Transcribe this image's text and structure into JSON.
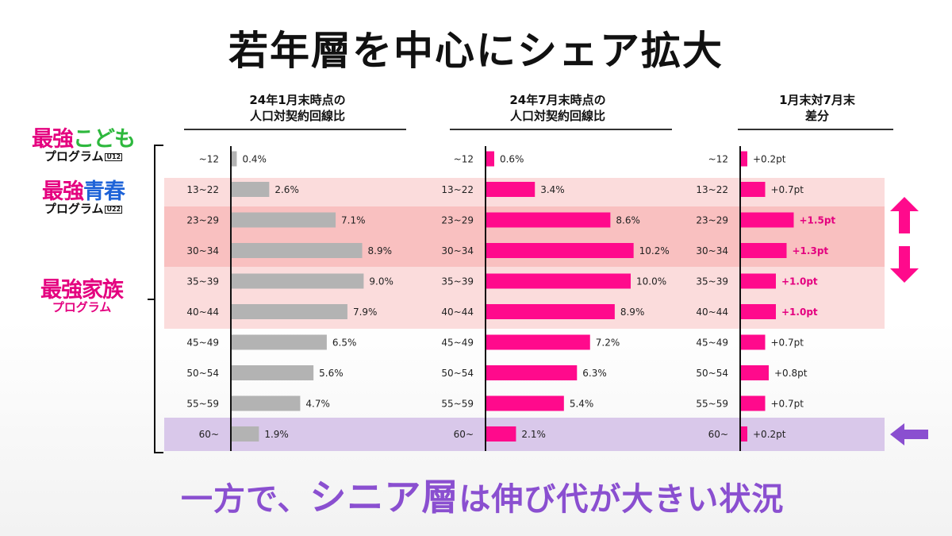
{
  "title": "若年層を中心にシェア拡大",
  "columns": [
    {
      "line1": "24年1月末時点の",
      "line2": "人口対契約回線比"
    },
    {
      "line1": "24年7月末時点の",
      "line2": "人口対契約回線比"
    },
    {
      "line1": "1月末対7月末",
      "line2": "差分"
    }
  ],
  "programs": {
    "kodomo": {
      "part1": "最強",
      "part2": "こども",
      "sub": "プログラム",
      "tag": "U12",
      "color1": "#e4007f",
      "color2": "#2db83d"
    },
    "seishun": {
      "part1": "最強",
      "part2": "青春",
      "sub": "プログラム",
      "tag": "U22",
      "color1": "#e4007f",
      "color2": "#1e63d8"
    },
    "kazoku": {
      "title": "最強家族",
      "sub": "プログラム",
      "color": "#e4007f"
    }
  },
  "footer": {
    "part1": "一方で、",
    "emph": "シニア層",
    "part2": "は伸び代が大きい状況"
  },
  "colors": {
    "gray_bar": "#b3b3b3",
    "pink_bar": "#ff0a8c",
    "accent_text": "#e4007f",
    "purple_arrow": "#8a4fd0"
  },
  "chart_data": {
    "type": "bar",
    "orientation": "horizontal",
    "categories": [
      "~12",
      "13~22",
      "23~29",
      "30~34",
      "35~39",
      "40~44",
      "45~49",
      "50~54",
      "55~59",
      "60~"
    ],
    "series": [
      {
        "name": "24年1月末時点の人口対契約回線比",
        "values": [
          0.4,
          2.6,
          7.1,
          8.9,
          9.0,
          7.9,
          6.5,
          5.6,
          4.7,
          1.9
        ],
        "labels": [
          "0.4%",
          "2.6%",
          "7.1%",
          "8.9%",
          "9.0%",
          "7.9%",
          "6.5%",
          "5.6%",
          "4.7%",
          "1.9%"
        ]
      },
      {
        "name": "24年7月末時点の人口対契約回線比",
        "values": [
          0.6,
          3.4,
          8.6,
          10.2,
          10.0,
          8.9,
          7.2,
          6.3,
          5.4,
          2.1
        ],
        "labels": [
          "0.6%",
          "3.4%",
          "8.6%",
          "10.2%",
          "10.0%",
          "8.9%",
          "7.2%",
          "6.3%",
          "5.4%",
          "2.1%"
        ]
      },
      {
        "name": "1月末対7月末差分",
        "values": [
          0.2,
          0.7,
          1.5,
          1.3,
          1.0,
          1.0,
          0.7,
          0.8,
          0.7,
          0.2
        ],
        "labels": [
          "+0.2pt",
          "+0.7pt",
          "+1.5pt",
          "+1.3pt",
          "+1.0pt",
          "+1.0pt",
          "+0.7pt",
          "+0.8pt",
          "+0.7pt",
          "+0.2pt"
        ],
        "highlighted": [
          false,
          false,
          true,
          true,
          true,
          true,
          false,
          false,
          false,
          false
        ]
      }
    ]
  }
}
